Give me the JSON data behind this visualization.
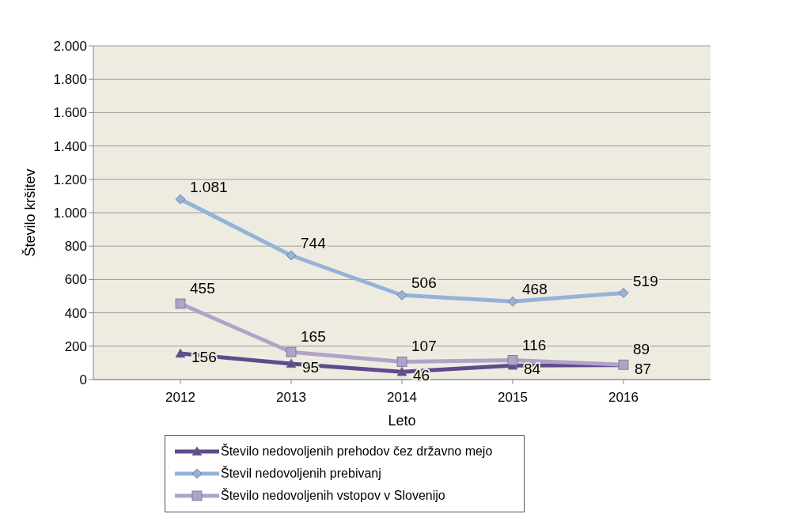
{
  "chart_data": {
    "type": "line",
    "xlabel": "Leto",
    "ylabel": "Število kršitev",
    "categories": [
      "2012",
      "2013",
      "2014",
      "2015",
      "2016"
    ],
    "series": [
      {
        "name": "Število nedovoljenih prehodov čez državno mejo",
        "color": "#5f4b8b",
        "marker": "triangle",
        "values": [
          156,
          95,
          46,
          84,
          87
        ],
        "value_labels": [
          "156",
          "95",
          "46",
          "84",
          "87"
        ]
      },
      {
        "name": "Števil nedovoljenih prebivanj",
        "color": "#95b3d7",
        "marker": "diamond",
        "values": [
          1081,
          744,
          506,
          468,
          519
        ],
        "value_labels": [
          "1.081",
          "744",
          "506",
          "468",
          "519"
        ]
      },
      {
        "name": "Število nedovoljenih vstopov v Slovenijo",
        "color": "#b3a2c7",
        "marker": "square",
        "values": [
          455,
          165,
          107,
          116,
          89
        ],
        "value_labels": [
          "455",
          "165",
          "107",
          "116",
          "89"
        ]
      }
    ],
    "ylim": [
      0,
      2000
    ],
    "yticks": [
      {
        "value": 0,
        "label": "0"
      },
      {
        "value": 200,
        "label": "200"
      },
      {
        "value": 400,
        "label": "400"
      },
      {
        "value": 600,
        "label": "600"
      },
      {
        "value": 800,
        "label": "800"
      },
      {
        "value": 1000,
        "label": "1.000"
      },
      {
        "value": 1200,
        "label": "1.200"
      },
      {
        "value": 1400,
        "label": "1.400"
      },
      {
        "value": 1600,
        "label": "1.600"
      },
      {
        "value": 1800,
        "label": "1.800"
      },
      {
        "value": 2000,
        "label": "2.000"
      }
    ],
    "grid": "y",
    "legend": "bottom",
    "line_style": "solid"
  }
}
